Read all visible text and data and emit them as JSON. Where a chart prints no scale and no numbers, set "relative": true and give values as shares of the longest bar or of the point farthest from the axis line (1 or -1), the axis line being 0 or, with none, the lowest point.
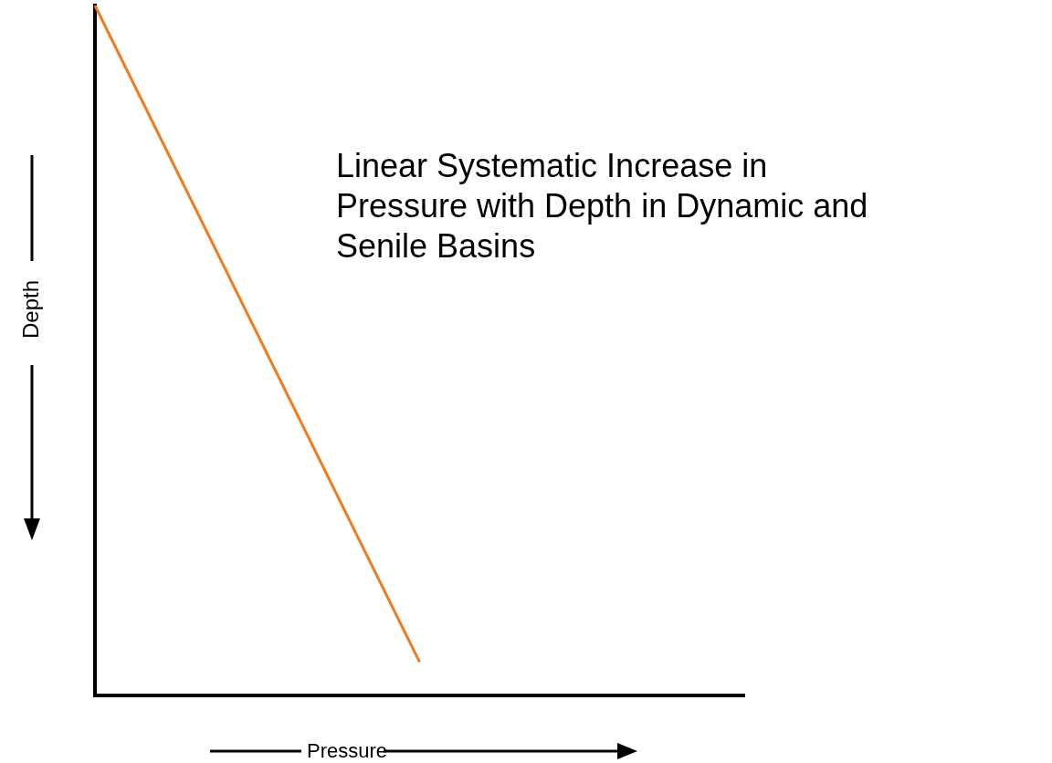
{
  "chart_data": {
    "type": "line",
    "relative": true,
    "categories": [
      null,
      null,
      null
    ],
    "xlabel": "Pressure",
    "ylabel": "Depth",
    "series": [
      {
        "color": "#f07a1e",
        "values": [
          1,
          0.048,
          null
        ]
      }
    ],
    "annotations": [
      "Linear Systematic Increase in Pressure with Depth in Dynamic and Senile Basins"
    ],
    "grid": false,
    "legend": false,
    "marker": "none",
    "line_style": "solid"
  }
}
